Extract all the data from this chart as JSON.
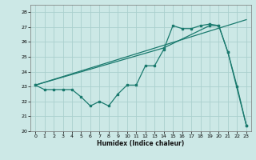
{
  "xlabel": "Humidex (Indice chaleur)",
  "bg_color": "#cce8e6",
  "grid_color": "#aacfcd",
  "line_color": "#1a7a6e",
  "xlim": [
    -0.5,
    23.5
  ],
  "ylim": [
    20,
    28.5
  ],
  "yticks": [
    20,
    21,
    22,
    23,
    24,
    25,
    26,
    27,
    28
  ],
  "xticks": [
    0,
    1,
    2,
    3,
    4,
    5,
    6,
    7,
    8,
    9,
    10,
    11,
    12,
    13,
    14,
    15,
    16,
    17,
    18,
    19,
    20,
    21,
    22,
    23
  ],
  "line1_x": [
    0,
    1,
    2,
    3,
    4,
    5,
    6,
    7,
    8,
    9,
    10,
    11,
    12,
    13,
    14,
    15,
    16,
    17,
    18,
    19,
    20,
    21,
    22,
    23
  ],
  "line1_y": [
    23.1,
    22.8,
    22.8,
    22.8,
    22.8,
    22.3,
    21.7,
    22.0,
    21.7,
    22.5,
    23.1,
    23.1,
    24.4,
    24.4,
    25.5,
    27.1,
    26.9,
    26.9,
    27.1,
    27.2,
    27.1,
    25.3,
    23.0,
    20.4
  ],
  "line2_x": [
    0,
    23
  ],
  "line2_y": [
    23.1,
    27.5
  ],
  "line3_x": [
    0,
    14,
    19,
    20,
    21,
    23
  ],
  "line3_y": [
    23.1,
    25.6,
    27.1,
    27.1,
    25.3,
    20.4
  ]
}
